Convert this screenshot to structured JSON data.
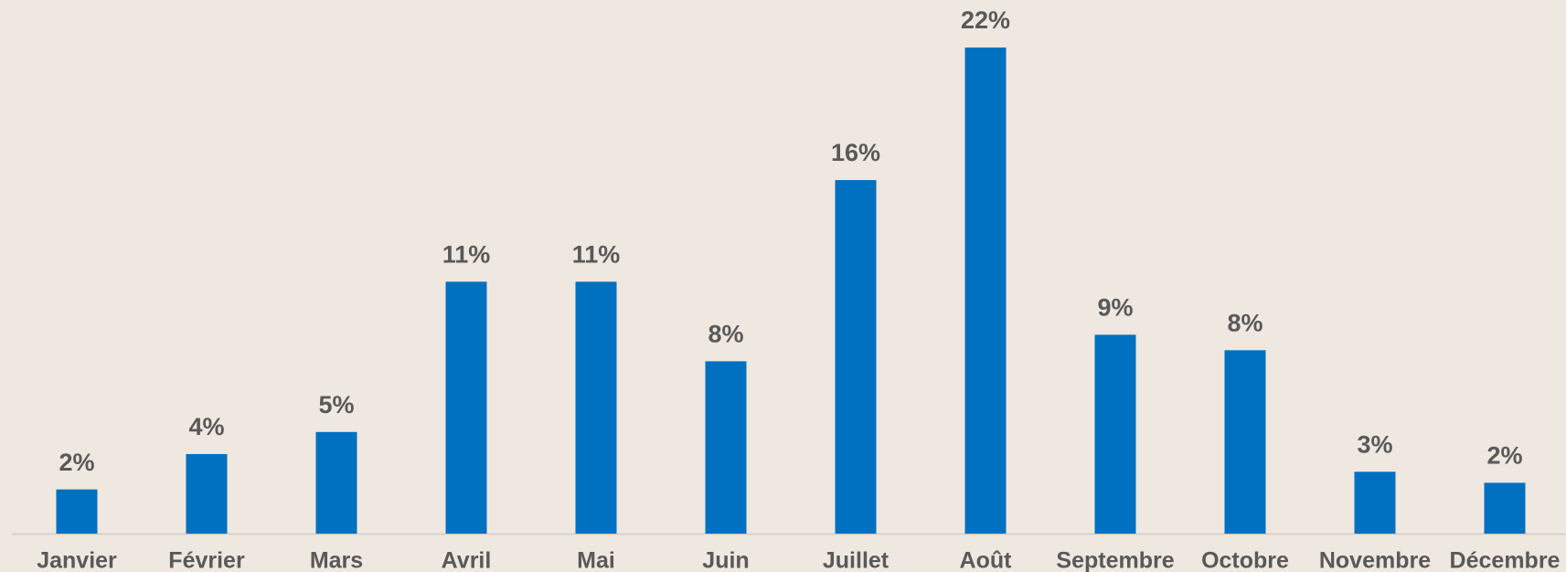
{
  "chart_data": {
    "type": "bar",
    "categories": [
      "Janvier",
      "Février",
      "Mars",
      "Avril",
      "Mai",
      "Juin",
      "Juillet",
      "Août",
      "Septembre",
      "Octobre",
      "Novembre",
      "Décembre"
    ],
    "values": [
      2.0,
      3.6,
      4.6,
      11.4,
      11.4,
      7.8,
      16.0,
      22.0,
      9.0,
      8.3,
      2.8,
      2.3
    ],
    "value_labels": [
      "2%",
      "4%",
      "5%",
      "11%",
      "11%",
      "8%",
      "16%",
      "22%",
      "9%",
      "8%",
      "3%",
      "2%"
    ],
    "color": "#0070c0"
  }
}
